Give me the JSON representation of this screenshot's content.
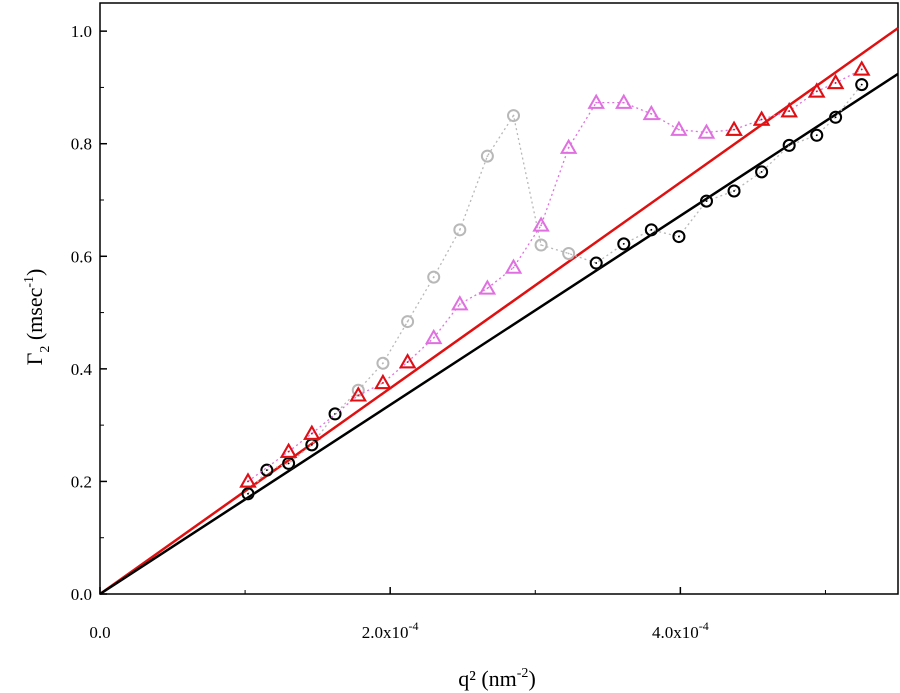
{
  "chart_data": {
    "type": "scatter",
    "title": "",
    "xlabel": {
      "base": "q² (nm",
      "sup": "-2",
      "tail": ")"
    },
    "ylabel": {
      "main": "Γ",
      "sub": "2",
      "mid": " (msec",
      "sup": "-1",
      "tail": ")"
    },
    "xlim": [
      0,
      0.00055
    ],
    "ylim": [
      0,
      1.05
    ],
    "x_ticks": [
      {
        "value": 0.0,
        "label": "0.0"
      },
      {
        "value": 0.0002,
        "base": "2.0x10",
        "exp": "-4"
      },
      {
        "value": 0.0004,
        "base": "4.0x10",
        "exp": "-4"
      }
    ],
    "y_ticks": [
      {
        "value": 0.0,
        "label": "0.0"
      },
      {
        "value": 0.2,
        "label": "0.2"
      },
      {
        "value": 0.4,
        "label": "0.4"
      },
      {
        "value": 0.6,
        "label": "0.6"
      },
      {
        "value": 0.8,
        "label": "0.8"
      },
      {
        "value": 1.0,
        "label": "1.0"
      }
    ],
    "series": [
      {
        "name": "gray circles",
        "marker": "circle",
        "color": "#b8b8b8",
        "connect": "dotted",
        "x": [
          0.000102,
          0.000115,
          0.00013,
          0.000146,
          0.000162,
          0.000178,
          0.000195,
          0.000212,
          0.00023,
          0.000248,
          0.000267,
          0.000285,
          0.000304,
          0.000323,
          0.000342,
          0.000361,
          0.00038,
          0.000399,
          0.000418,
          0.000437,
          0.000456,
          0.000475,
          0.000494,
          0.000507,
          0.000525
        ],
        "y": [
          0.178,
          0.22,
          0.232,
          0.265,
          0.32,
          0.362,
          0.41,
          0.484,
          0.563,
          0.647,
          0.778,
          0.85,
          0.62,
          0.605,
          0.588,
          0.622,
          0.647,
          0.635,
          0.698,
          0.716,
          0.75,
          0.797,
          0.815,
          0.847,
          0.905
        ]
      },
      {
        "name": "black circles",
        "marker": "circle",
        "color": "#000000",
        "connect": "none",
        "x": [
          0.000102,
          0.000115,
          0.00013,
          0.000146,
          0.000162,
          0.000342,
          0.000361,
          0.00038,
          0.000399,
          0.000418,
          0.000437,
          0.000456,
          0.000475,
          0.000494,
          0.000507,
          0.000525
        ],
        "y": [
          0.178,
          0.22,
          0.232,
          0.265,
          0.32,
          0.588,
          0.622,
          0.647,
          0.635,
          0.698,
          0.716,
          0.75,
          0.797,
          0.815,
          0.847,
          0.905
        ]
      },
      {
        "name": "magenta triangles",
        "marker": "triangle",
        "color": "#e070e0",
        "connect": "dotted",
        "x": [
          0.000102,
          0.00013,
          0.000146,
          0.000178,
          0.000195,
          0.000212,
          0.00023,
          0.000248,
          0.000267,
          0.000285,
          0.000304,
          0.000323,
          0.000342,
          0.000361,
          0.00038,
          0.000399,
          0.000418,
          0.000437,
          0.000456,
          0.000475,
          0.000494,
          0.000507,
          0.000525
        ],
        "y": [
          0.2,
          0.253,
          0.285,
          0.353,
          0.375,
          0.412,
          0.455,
          0.515,
          0.543,
          0.58,
          0.655,
          0.793,
          0.873,
          0.873,
          0.853,
          0.825,
          0.82,
          0.825,
          0.843,
          0.858,
          0.893,
          0.908,
          0.932
        ]
      },
      {
        "name": "red triangles",
        "marker": "triangle",
        "color": "#e01010",
        "connect": "none",
        "x": [
          0.000102,
          0.00013,
          0.000146,
          0.000178,
          0.000195,
          0.000212,
          0.000437,
          0.000456,
          0.000475,
          0.000494,
          0.000507,
          0.000525
        ],
        "y": [
          0.2,
          0.253,
          0.285,
          0.353,
          0.375,
          0.412,
          0.825,
          0.843,
          0.858,
          0.893,
          0.908,
          0.932
        ]
      }
    ],
    "fits": [
      {
        "name": "red fit",
        "color": "#e01010",
        "slope": 1828,
        "x_range": [
          0,
          0.00055
        ]
      },
      {
        "name": "black fit",
        "color": "#000000",
        "slope": 1680,
        "x_range": [
          0,
          0.00055
        ]
      }
    ]
  }
}
